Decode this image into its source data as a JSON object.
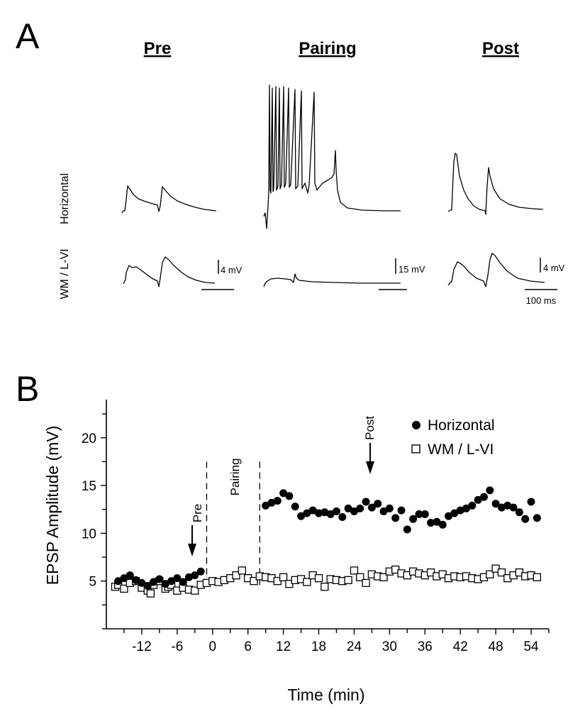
{
  "panel_a": {
    "letter": "A",
    "conditions": [
      "Pre",
      "Pairing",
      "Post"
    ],
    "rows": [
      "Horizontal",
      "WM / L-VI"
    ],
    "scale_labels": {
      "pre": "4 mV",
      "pairing": "15 mV",
      "post": "4 mV",
      "time": "100 ms"
    }
  },
  "panel_b": {
    "letter": "B",
    "annotations": {
      "pre": "Pre",
      "pairing": "Pairing",
      "post": "Post"
    }
  },
  "chart_data": {
    "type": "scatter",
    "xlabel": "Time (min)",
    "ylabel": "EPSP Amplitude (mV)",
    "xlim": [
      -18,
      57
    ],
    "ylim": [
      0,
      24
    ],
    "xticks": [
      -12,
      -6,
      0,
      6,
      12,
      18,
      24,
      30,
      36,
      42,
      48,
      54
    ],
    "yticks": [
      5,
      10,
      15,
      20
    ],
    "legend_position": "top-right",
    "vlines": [
      -1,
      8
    ],
    "series": [
      {
        "name": "Horizontal",
        "marker": "filled-circle",
        "x": [
          -16,
          -15,
          -14,
          -13,
          -12,
          -11,
          -10,
          -9,
          -8,
          -7,
          -6,
          -5,
          -4,
          -3,
          -2,
          9,
          10,
          11,
          12,
          13,
          14,
          15,
          16,
          17,
          18,
          19,
          20,
          21,
          22,
          23,
          24,
          25,
          26,
          27,
          28,
          29,
          30,
          31,
          32,
          33,
          34,
          35,
          36,
          37,
          38,
          39,
          40,
          41,
          42,
          43,
          44,
          45,
          46,
          47,
          48,
          49,
          50,
          51,
          52,
          53,
          54,
          55
        ],
        "y": [
          5.0,
          5.3,
          5.6,
          5.1,
          4.8,
          4.5,
          4.9,
          5.2,
          4.7,
          5.0,
          5.3,
          4.9,
          5.4,
          5.6,
          6.0,
          12.9,
          13.2,
          13.4,
          14.2,
          13.9,
          12.8,
          11.8,
          12.1,
          12.4,
          12.1,
          12.2,
          12.0,
          12.3,
          11.7,
          12.6,
          12.3,
          12.6,
          13.3,
          12.7,
          13.1,
          12.3,
          12.6,
          11.6,
          12.4,
          10.4,
          11.5,
          12.0,
          12.0,
          11.1,
          11.2,
          10.9,
          11.8,
          12.1,
          12.4,
          12.6,
          12.9,
          13.5,
          13.8,
          14.5,
          13.1,
          12.7,
          12.9,
          12.7,
          12.2,
          11.5,
          13.3,
          11.6
        ]
      },
      {
        "name": "WM / L-VI",
        "marker": "open-square",
        "x": [
          -16.5,
          -16,
          -15,
          -14,
          -13,
          -12,
          -11,
          -10.5,
          -10,
          -9,
          -8,
          -7.5,
          -7,
          -6,
          -5,
          -4,
          -3,
          -2,
          -1,
          0,
          1,
          2,
          3,
          4,
          5,
          6,
          7,
          8,
          9,
          10,
          11,
          12,
          13,
          14,
          15,
          16,
          17,
          18,
          19,
          20,
          21,
          22,
          23,
          24,
          25,
          26,
          27,
          28,
          29,
          30,
          31,
          32,
          33,
          34,
          35,
          36,
          37,
          38,
          39,
          40,
          41,
          42,
          43,
          44,
          45,
          46,
          47,
          48,
          49,
          50,
          51,
          52,
          53,
          54,
          55
        ],
        "y": [
          4.4,
          4.6,
          4.2,
          4.8,
          5.0,
          4.3,
          4.0,
          3.7,
          4.6,
          5.0,
          4.2,
          4.4,
          4.6,
          4.0,
          4.3,
          4.1,
          4.0,
          4.6,
          4.8,
          5.0,
          4.9,
          5.1,
          5.3,
          5.6,
          6.1,
          5.3,
          5.0,
          5.5,
          5.4,
          5.3,
          5.0,
          5.4,
          4.7,
          5.1,
          5.2,
          4.9,
          5.6,
          5.3,
          4.4,
          5.2,
          5.1,
          5.0,
          5.1,
          6.1,
          5.4,
          4.8,
          5.7,
          5.5,
          5.4,
          6.0,
          6.2,
          5.8,
          5.6,
          6.0,
          5.8,
          5.6,
          5.9,
          5.5,
          5.7,
          5.3,
          5.5,
          5.4,
          5.5,
          5.3,
          5.2,
          5.4,
          5.7,
          6.3,
          5.9,
          5.3,
          5.6,
          5.9,
          5.5,
          5.6,
          5.4
        ]
      }
    ]
  },
  "colors": {
    "ink": "#000000",
    "background": "#ffffff"
  }
}
